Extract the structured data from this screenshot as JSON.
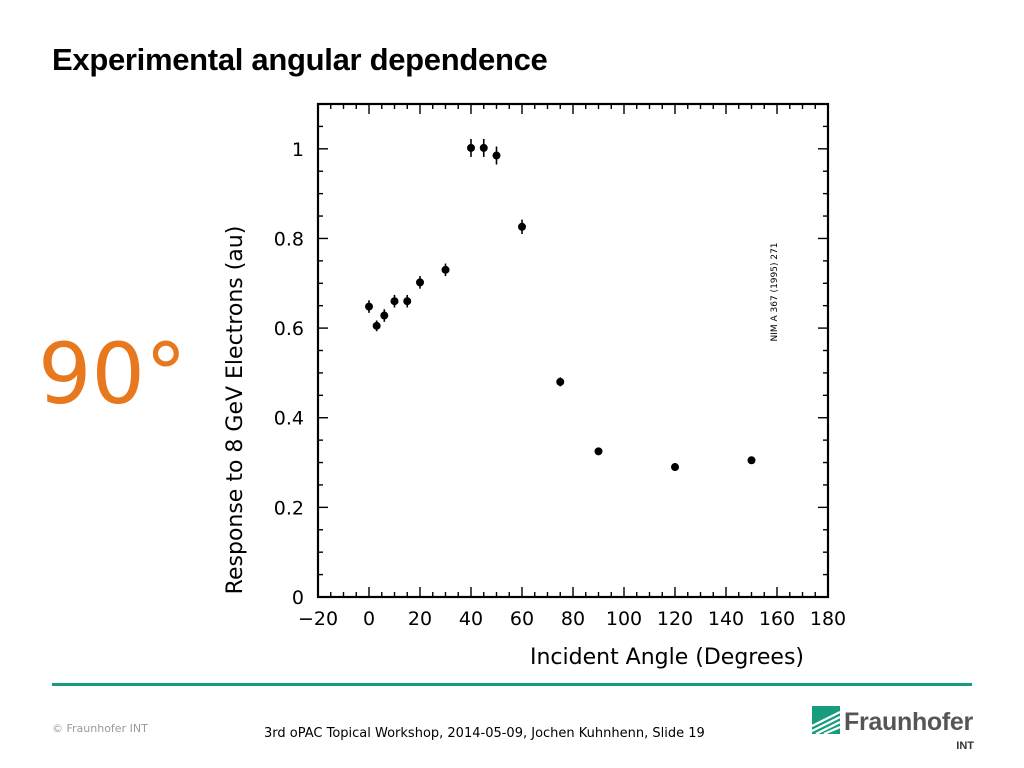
{
  "slide": {
    "title": "Experimental angular dependence",
    "angle_label": "90°",
    "footer": "3rd oPAC Topical Workshop, 2014-05-09, Jochen Kuhnhenn, Slide 19",
    "copyright": "© Fraunhofer INT",
    "logo_word": "Fraunhofer",
    "logo_sub": "INT"
  },
  "colors": {
    "accent": "#e8781e",
    "rule": "#179c7d",
    "logo_green": "#179c7d"
  },
  "chart_data": {
    "type": "scatter",
    "title": "",
    "xlabel": "Incident Angle (Degrees)",
    "ylabel": "Response to 8 GeV Electrons (au)",
    "xlim": [
      -20,
      180
    ],
    "ylim": [
      0,
      1.1
    ],
    "xticks": [
      -20,
      0,
      20,
      40,
      60,
      80,
      100,
      120,
      140,
      160,
      180
    ],
    "yticks": [
      0,
      0.2,
      0.4,
      0.6,
      0.8,
      1
    ],
    "ytick_labels": [
      "0",
      "0.2",
      "0.4",
      "0.6",
      "0.8",
      "1"
    ],
    "annotation": "NIM A 367 (1995) 271",
    "points": [
      {
        "x": 0,
        "y": 0.648,
        "err": 0.014
      },
      {
        "x": 3,
        "y": 0.605,
        "err": 0.012
      },
      {
        "x": 6,
        "y": 0.628,
        "err": 0.014
      },
      {
        "x": 10,
        "y": 0.66,
        "err": 0.014
      },
      {
        "x": 15,
        "y": 0.66,
        "err": 0.014
      },
      {
        "x": 20,
        "y": 0.702,
        "err": 0.014
      },
      {
        "x": 30,
        "y": 0.73,
        "err": 0.014
      },
      {
        "x": 40,
        "y": 1.002,
        "err": 0.02
      },
      {
        "x": 45,
        "y": 1.002,
        "err": 0.02
      },
      {
        "x": 50,
        "y": 0.985,
        "err": 0.02
      },
      {
        "x": 60,
        "y": 0.826,
        "err": 0.016
      },
      {
        "x": 75,
        "y": 0.48,
        "err": 0.01
      },
      {
        "x": 90,
        "y": 0.325,
        "err": 0.006
      },
      {
        "x": 120,
        "y": 0.29,
        "err": 0.006
      },
      {
        "x": 150,
        "y": 0.305,
        "err": 0.006
      }
    ]
  }
}
